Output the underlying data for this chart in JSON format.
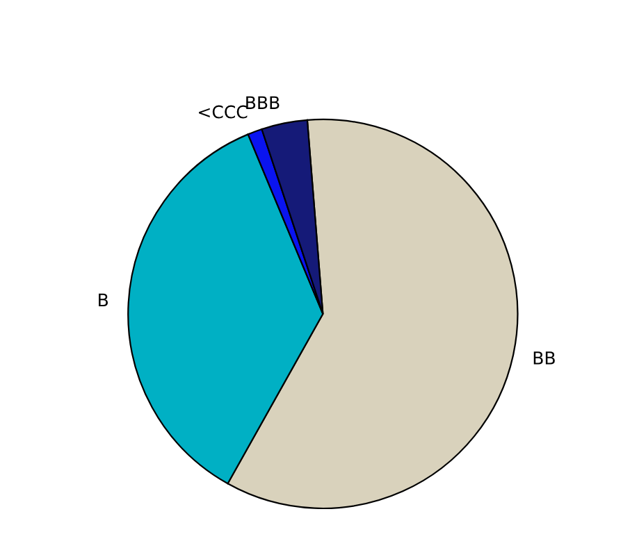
{
  "chart_data": {
    "type": "pie",
    "categories": [
      "BB",
      "B",
      "<CCC",
      "BBB"
    ],
    "values": [
      59.4,
      35.6,
      1.2,
      3.8
    ],
    "colors": [
      "#d9d2bc",
      "#00b0c4",
      "#0a14f0",
      "#151a78"
    ]
  }
}
